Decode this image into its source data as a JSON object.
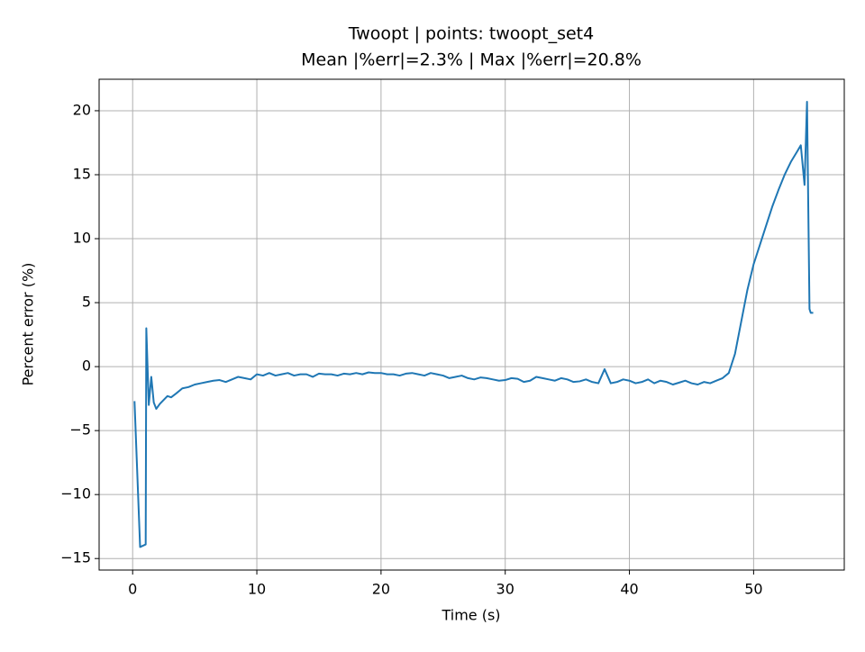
{
  "chart_data": {
    "type": "line",
    "title": "Twoopt | points: twoopt_set4",
    "subtitle": "Mean |%err|=2.3% | Max |%err|=20.8%",
    "x_label": "Time (s)",
    "y_label": "Percent error (%)",
    "x": [
      0.15,
      0.6,
      1.05,
      1.1,
      1.3,
      1.5,
      1.7,
      1.9,
      2.2,
      2.5,
      2.8,
      3.1,
      3.5,
      4.0,
      4.5,
      5.0,
      5.5,
      6.0,
      6.5,
      7.0,
      7.5,
      8.0,
      8.5,
      9.0,
      9.5,
      10.0,
      10.5,
      11.0,
      11.5,
      12.0,
      12.5,
      13.0,
      13.5,
      14.0,
      14.5,
      15.0,
      15.5,
      16.0,
      16.5,
      17.0,
      17.5,
      18.0,
      18.5,
      19.0,
      19.5,
      20.0,
      20.5,
      21.0,
      21.5,
      22.0,
      22.5,
      23.0,
      23.5,
      24.0,
      24.5,
      25.0,
      25.5,
      26.0,
      26.5,
      27.0,
      27.5,
      28.0,
      28.5,
      29.0,
      29.5,
      30.0,
      30.5,
      31.0,
      31.5,
      32.0,
      32.5,
      33.0,
      33.5,
      34.0,
      34.5,
      35.0,
      35.5,
      36.0,
      36.5,
      37.0,
      37.5,
      38.0,
      38.5,
      39.0,
      39.5,
      40.0,
      40.5,
      41.0,
      41.5,
      42.0,
      42.5,
      43.0,
      43.5,
      44.0,
      44.5,
      45.0,
      45.5,
      46.0,
      46.5,
      47.0,
      47.5,
      48.0,
      48.5,
      49.0,
      49.5,
      50.0,
      50.5,
      51.0,
      51.5,
      52.0,
      52.5,
      53.0,
      53.5,
      53.8,
      54.1,
      54.3,
      54.5,
      54.6,
      54.8
    ],
    "series": [
      {
        "name": "Percent error",
        "color": "#1f77b4",
        "values": [
          -2.7,
          -14.1,
          -13.9,
          3.0,
          -3.0,
          -0.8,
          -2.8,
          -3.3,
          -2.9,
          -2.6,
          -2.3,
          -2.4,
          -2.1,
          -1.7,
          -1.6,
          -1.4,
          -1.3,
          -1.2,
          -1.1,
          -1.05,
          -1.2,
          -1.0,
          -0.8,
          -0.9,
          -1.0,
          -0.6,
          -0.7,
          -0.5,
          -0.7,
          -0.6,
          -0.5,
          -0.7,
          -0.6,
          -0.6,
          -0.8,
          -0.55,
          -0.6,
          -0.6,
          -0.7,
          -0.55,
          -0.6,
          -0.5,
          -0.6,
          -0.45,
          -0.5,
          -0.5,
          -0.6,
          -0.6,
          -0.7,
          -0.55,
          -0.5,
          -0.6,
          -0.7,
          -0.5,
          -0.6,
          -0.7,
          -0.9,
          -0.8,
          -0.7,
          -0.9,
          -1.0,
          -0.85,
          -0.9,
          -1.0,
          -1.1,
          -1.05,
          -0.9,
          -0.95,
          -1.2,
          -1.1,
          -0.8,
          -0.9,
          -1.0,
          -1.1,
          -0.9,
          -1.0,
          -1.2,
          -1.15,
          -1.0,
          -1.2,
          -1.3,
          -0.2,
          -1.3,
          -1.2,
          -1.0,
          -1.1,
          -1.3,
          -1.2,
          -1.0,
          -1.3,
          -1.1,
          -1.2,
          -1.4,
          -1.25,
          -1.1,
          -1.3,
          -1.4,
          -1.2,
          -1.3,
          -1.1,
          -0.9,
          -0.5,
          1.0,
          3.5,
          6.0,
          8.0,
          9.5,
          11.0,
          12.5,
          13.8,
          15.0,
          16.0,
          16.8,
          17.3,
          14.2,
          20.7,
          4.5,
          4.2,
          4.2
        ]
      }
    ],
    "xlim": [
      -2.7,
      57.3
    ],
    "ylim": [
      -15.9,
      22.46
    ],
    "xticks": [
      0,
      10,
      20,
      30,
      40,
      50
    ],
    "yticks": [
      {
        "value": -15,
        "label": "−15"
      },
      {
        "value": -10,
        "label": "−10"
      },
      {
        "value": -5,
        "label": "−5"
      },
      0,
      5,
      10,
      15,
      20
    ],
    "grid": true
  }
}
